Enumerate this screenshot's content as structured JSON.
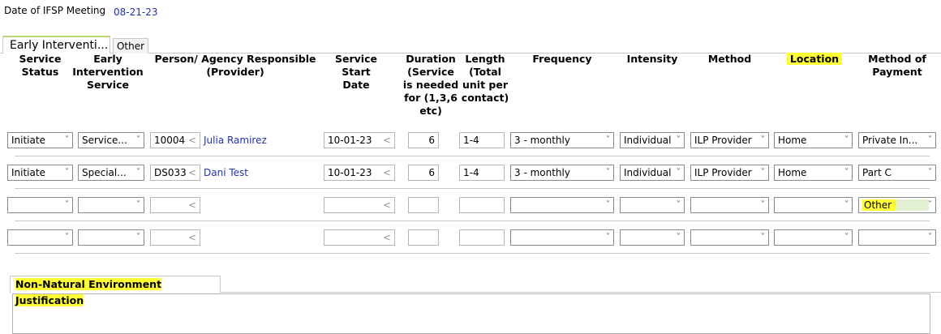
{
  "meeting": {
    "label": "Date of IFSP Meeting",
    "value": "08-21-23"
  },
  "tabs": [
    {
      "label": "Early Interventi..."
    },
    {
      "label": "Other"
    }
  ],
  "headers": [
    "Service Status",
    "Early Intervention Service",
    "Person/ Agency Responsible (Provider)",
    "Service Start Date",
    "Duration (Service is needed for (1,3,6 etc)",
    "Length (Total unit per contact)",
    "Frequency",
    "Intensity",
    "Method",
    "Location",
    "Method of Payment"
  ],
  "rows": [
    {
      "status": "Initiate",
      "service": "Service...",
      "person_id": "10004",
      "person_name": "Julia Ramirez",
      "start": "10-01-23",
      "duration": "6",
      "length": "1-4",
      "frequency": "3 - monthly",
      "intensity": "Individual",
      "method": "ILP Provider",
      "location": "Home",
      "payment": "Private In..."
    },
    {
      "status": "Initiate",
      "service": "Special...",
      "person_id": "DS033",
      "person_name": "Dani Test",
      "start": "10-01-23",
      "duration": "6",
      "length": "1-4",
      "frequency": "3 - monthly",
      "intensity": "Individual",
      "method": "ILP Provider",
      "location": "Home",
      "payment": "Part C"
    },
    {
      "status": "",
      "service": "",
      "person_id": "",
      "person_name": "",
      "start": "",
      "duration": "",
      "length": "",
      "frequency": "",
      "intensity": "",
      "method": "",
      "location": "",
      "payment": "Other"
    },
    {
      "status": "",
      "service": "",
      "person_id": "",
      "person_name": "",
      "start": "",
      "duration": "",
      "length": "",
      "frequency": "",
      "intensity": "",
      "method": "",
      "location": "",
      "payment": ""
    }
  ],
  "justification": {
    "label": "Non-Natural Environment Justification",
    "value": ""
  },
  "colors": {
    "highlight": "#ffff33",
    "link": "#2233aa"
  }
}
